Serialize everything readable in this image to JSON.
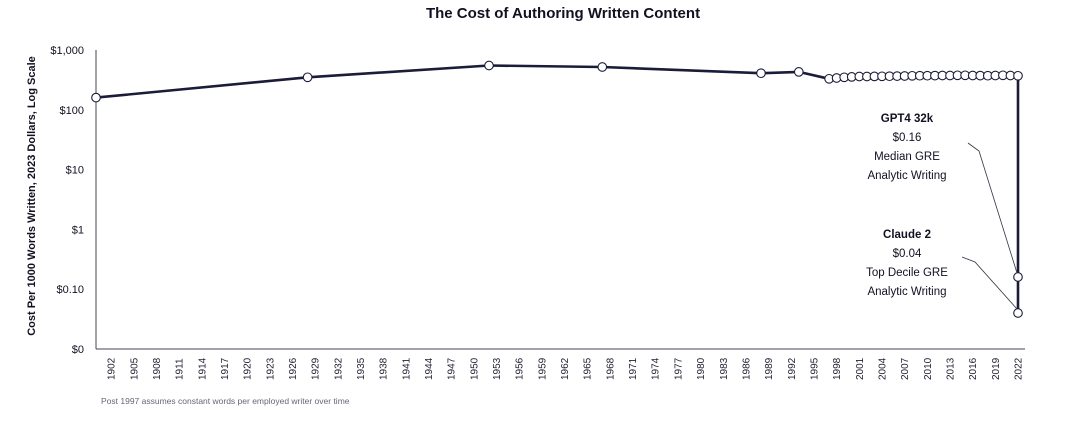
{
  "chart_data": {
    "type": "line",
    "title": "The Cost of Authoring Written Content",
    "xlabel": "",
    "ylabel": "Cost Per 1000 Words Written, 2023 Dollars, Log Scale",
    "yscale": "log",
    "ylim": [
      0.01,
      1000
    ],
    "y_ticks": [
      {
        "value": 1000,
        "label": "$1,000"
      },
      {
        "value": 100,
        "label": "$100"
      },
      {
        "value": 10,
        "label": "$10"
      },
      {
        "value": 1,
        "label": "$1"
      },
      {
        "value": 0.1,
        "label": "$0.10"
      },
      {
        "value": 0.01,
        "label": "$0"
      }
    ],
    "x_tick_labels": [
      "1902",
      "1905",
      "1908",
      "1911",
      "1914",
      "1917",
      "1920",
      "1923",
      "1926",
      "1929",
      "1932",
      "1935",
      "1938",
      "1941",
      "1944",
      "1947",
      "1950",
      "1953",
      "1956",
      "1959",
      "1962",
      "1965",
      "1968",
      "1971",
      "1974",
      "1977",
      "1980",
      "1983",
      "1986",
      "1989",
      "1992",
      "1995",
      "1998",
      "2001",
      "2004",
      "2007",
      "2010",
      "2013",
      "2016",
      "2019",
      "2022"
    ],
    "series": [
      {
        "name": "Cost per 1000 words",
        "color": "#1b1b3a",
        "points": [
          {
            "x": 1900,
            "y": 160
          },
          {
            "x": 1928,
            "y": 350
          },
          {
            "x": 1952,
            "y": 550
          },
          {
            "x": 1967,
            "y": 520
          },
          {
            "x": 1988,
            "y": 410
          },
          {
            "x": 1993,
            "y": 430
          },
          {
            "x": 1997,
            "y": 330
          },
          {
            "x": 1998,
            "y": 340
          },
          {
            "x": 1999,
            "y": 350
          },
          {
            "x": 2000,
            "y": 355
          },
          {
            "x": 2001,
            "y": 360
          },
          {
            "x": 2002,
            "y": 360
          },
          {
            "x": 2003,
            "y": 362
          },
          {
            "x": 2004,
            "y": 363
          },
          {
            "x": 2005,
            "y": 365
          },
          {
            "x": 2006,
            "y": 366
          },
          {
            "x": 2007,
            "y": 368
          },
          {
            "x": 2008,
            "y": 370
          },
          {
            "x": 2009,
            "y": 372
          },
          {
            "x": 2010,
            "y": 372
          },
          {
            "x": 2011,
            "y": 373
          },
          {
            "x": 2012,
            "y": 374
          },
          {
            "x": 2013,
            "y": 375
          },
          {
            "x": 2014,
            "y": 378
          },
          {
            "x": 2015,
            "y": 378
          },
          {
            "x": 2016,
            "y": 375
          },
          {
            "x": 2017,
            "y": 373
          },
          {
            "x": 2018,
            "y": 372
          },
          {
            "x": 2019,
            "y": 375
          },
          {
            "x": 2020,
            "y": 378
          },
          {
            "x": 2021,
            "y": 375
          },
          {
            "x": 2022,
            "y": 370
          },
          {
            "x": 2022,
            "y": 0.16
          },
          {
            "x": 2022,
            "y": 0.04
          }
        ]
      }
    ],
    "annotations": [
      {
        "model": "GPT4 32k",
        "price": "$0.16",
        "line1": "Median GRE",
        "line2": "Analytic Writing",
        "x": 2022,
        "y": 0.16
      },
      {
        "model": "Claude 2",
        "price": "$0.04",
        "line1": "Top Decile GRE",
        "line2": "Analytic Writing",
        "x": 2022,
        "y": 0.04
      }
    ],
    "footnote": "Post 1997 assumes constant words per employed writer over time"
  }
}
